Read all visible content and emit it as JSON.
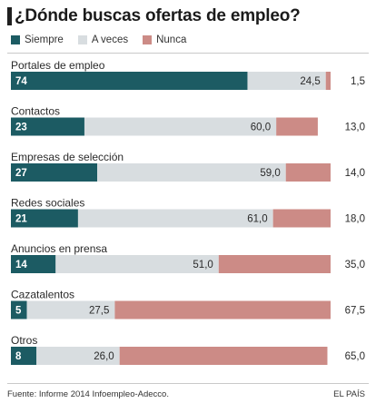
{
  "title": "¿Dónde buscas ofertas de empleo?",
  "footer": {
    "source": "Fuente: Informe 2014 Infoempleo-Adecco.",
    "brand": "EL PAÍS"
  },
  "chart_data": {
    "type": "bar",
    "orientation": "horizontal",
    "stacked": true,
    "title": "¿Dónde buscas ofertas de empleo?",
    "legend_placement": "top",
    "colors": {
      "Siempre": "#1c5b63",
      "A veces": "#d8dde0",
      "Nunca": "#cc8b86"
    },
    "categories": [
      "Portales de empleo",
      "Contactos",
      "Empresas de selección",
      "Redes sociales",
      "Anuncios en prensa",
      "Cazatalentos",
      "Otros"
    ],
    "series": [
      {
        "name": "Siempre",
        "values": [
          74,
          23,
          27,
          21,
          14,
          5,
          8
        ],
        "labels": [
          "74",
          "23",
          "27",
          "21",
          "14",
          "5",
          "8"
        ]
      },
      {
        "name": "A veces",
        "values": [
          24.5,
          60.0,
          59.0,
          61.0,
          51.0,
          27.5,
          26.0
        ],
        "labels": [
          "24,5",
          "60,0",
          "59,0",
          "61,0",
          "51,0",
          "27,5",
          "26,0"
        ]
      },
      {
        "name": "Nunca",
        "values": [
          1.5,
          13.0,
          14.0,
          18.0,
          35.0,
          67.5,
          65.0
        ],
        "labels": [
          "1,5",
          "13,0",
          "14,0",
          "18,0",
          "35,0",
          "67,5",
          "65,0"
        ]
      }
    ]
  }
}
